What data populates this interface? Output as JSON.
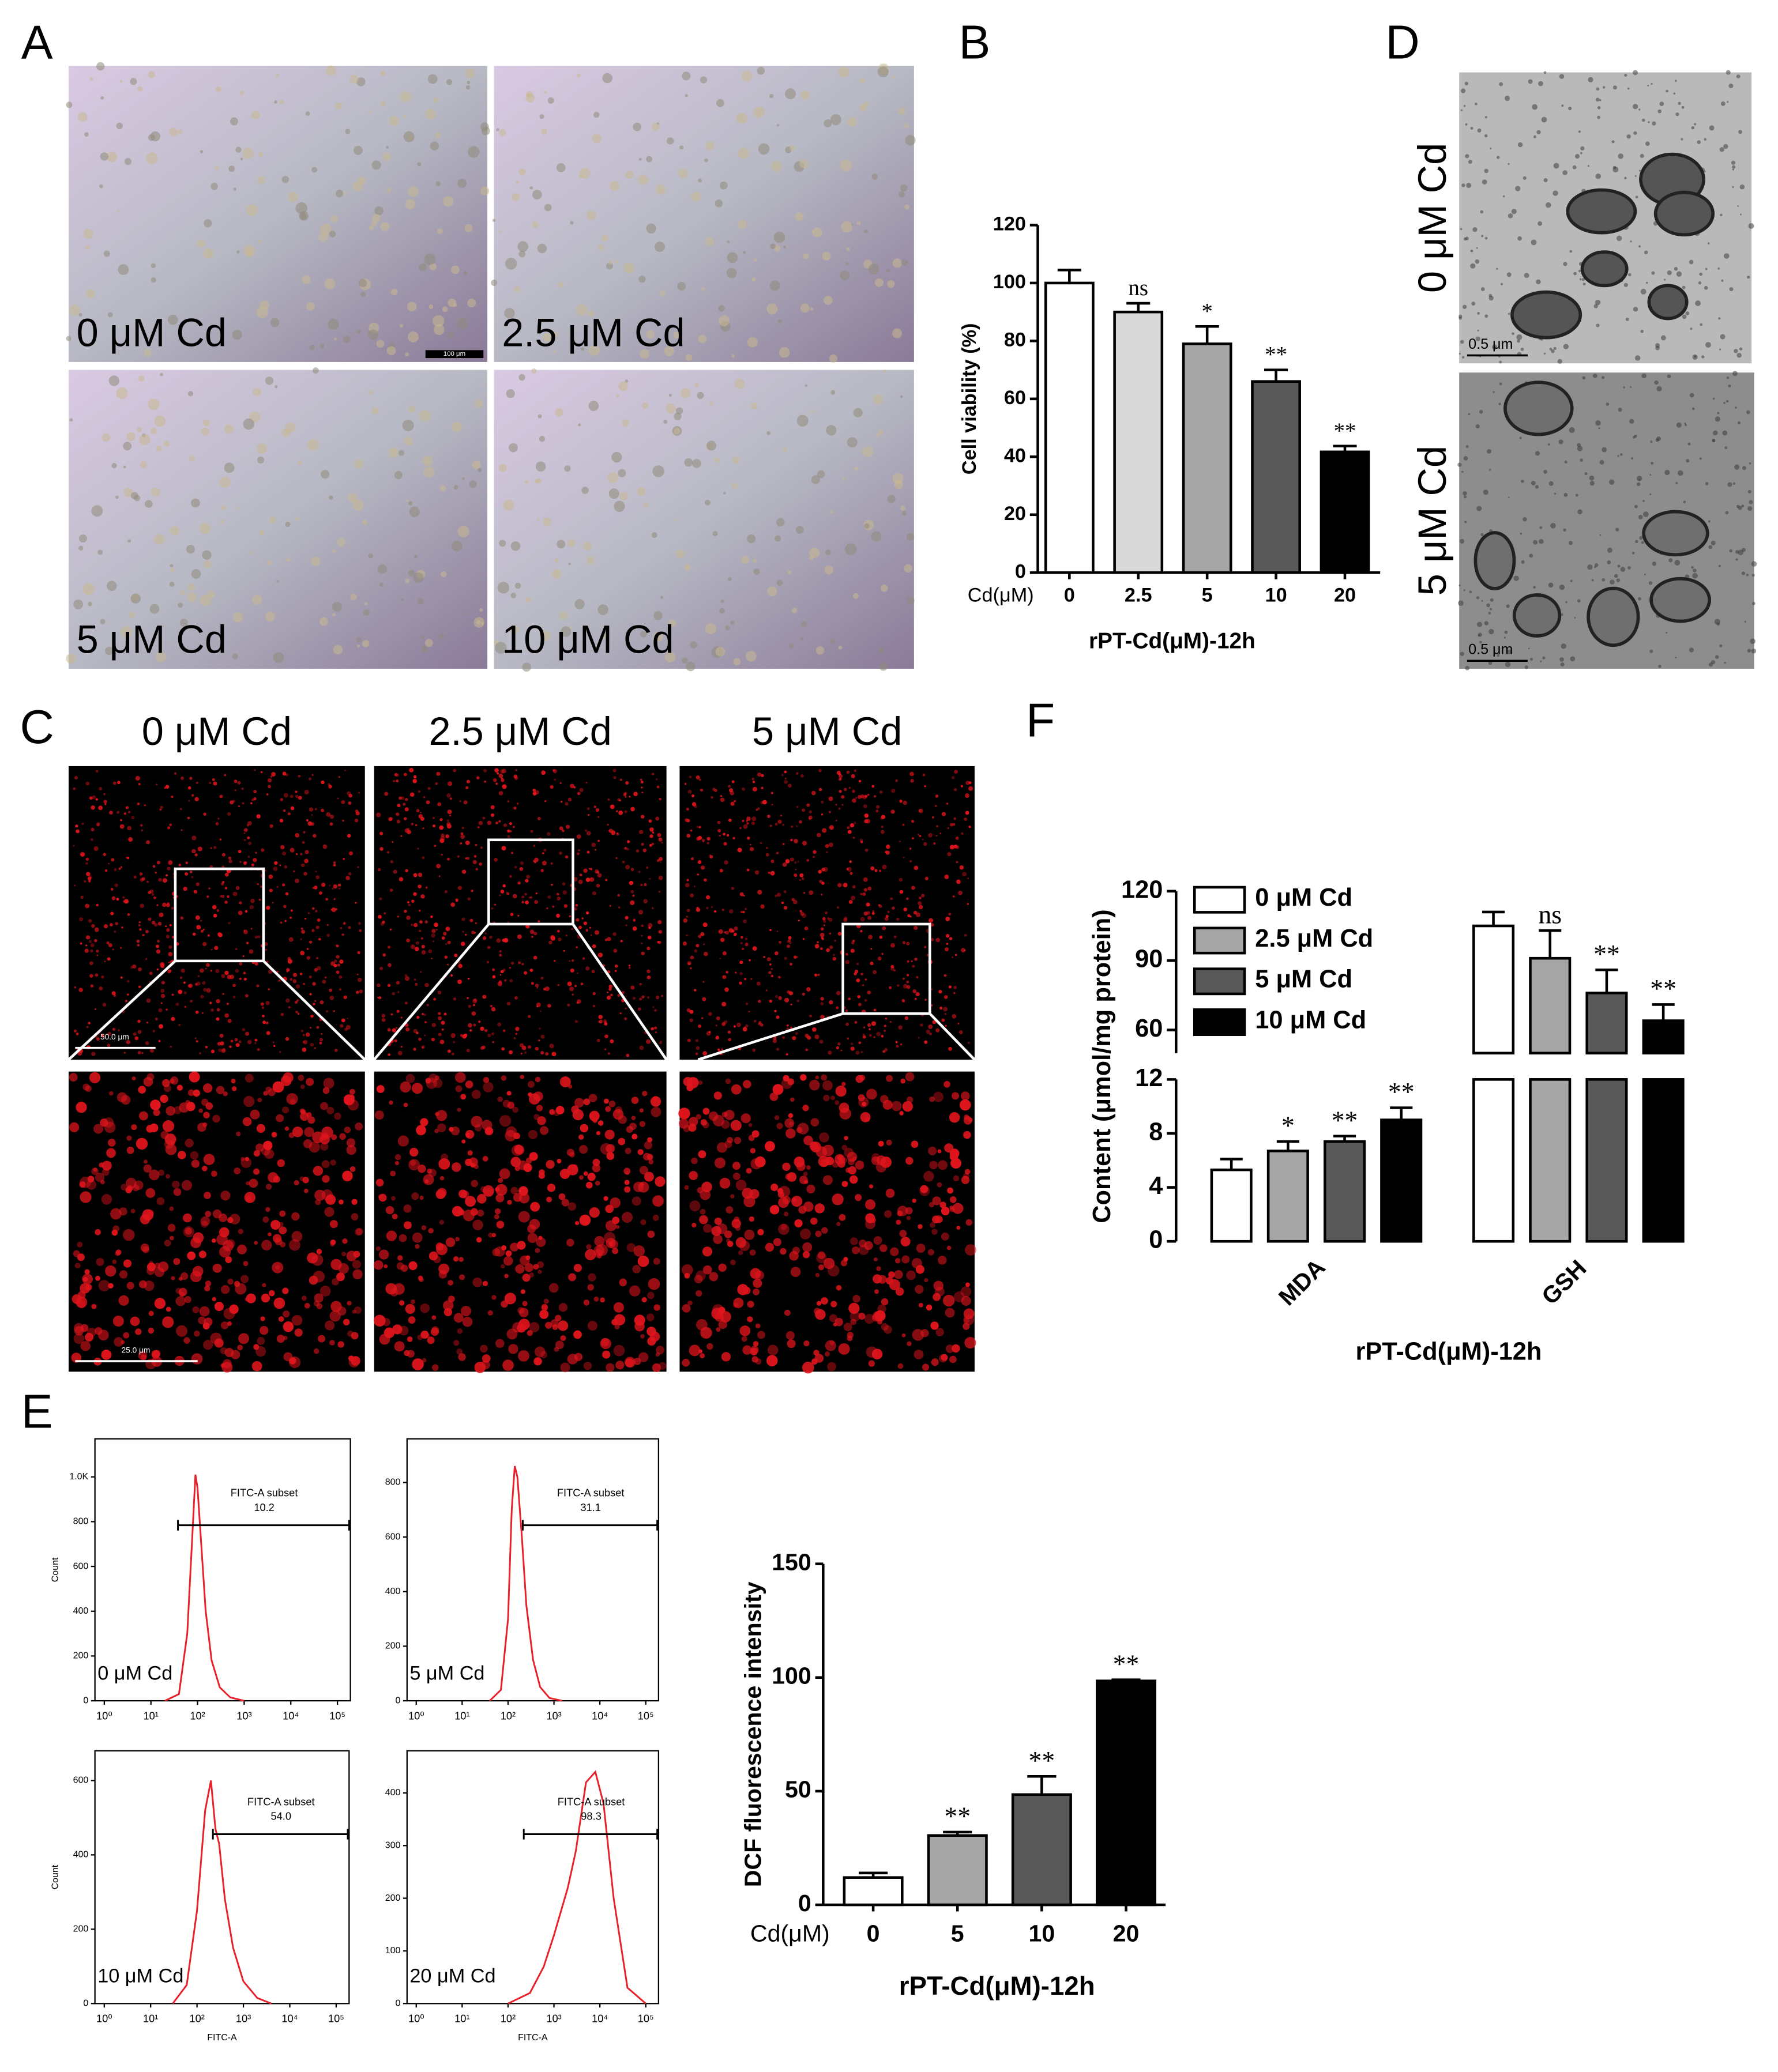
{
  "panel_labels": [
    "A",
    "B",
    "C",
    "D",
    "E",
    "F"
  ],
  "micrographs": {
    "A": {
      "labels": [
        "0 μM Cd",
        "2.5 μM Cd",
        "5 μM Cd",
        "10 μM Cd"
      ],
      "scale_bar": "100 μm"
    },
    "C": {
      "labels": [
        "0 μM Cd",
        "2.5 μM Cd",
        "5 μM Cd"
      ],
      "scale_bars": [
        "50.0 μm",
        "25.0 μm"
      ]
    },
    "D": {
      "labels": [
        "0 μM Cd",
        "5 μM Cd"
      ],
      "scale_bars": [
        "0.5 μm",
        "0.5 μm"
      ]
    }
  },
  "chart_data": [
    {
      "type": "bar",
      "categories": [
        "0",
        "2.5",
        "5",
        "10",
        "20"
      ],
      "x_axis_name": "Cd(μM)",
      "xlabel": "rPT-Cd(μM)-12h",
      "ylabel": "Cell viability (%)",
      "values": [
        100,
        90,
        79,
        66,
        41.7
      ],
      "errors": [
        4.5,
        3,
        6,
        4,
        2
      ],
      "annotations": [
        null,
        "ns",
        "*",
        "**",
        "**"
      ],
      "colors": [
        "#ffffff",
        "#d9d9d9",
        "#a6a6a6",
        "#595959",
        "#000000"
      ],
      "ylim": [
        0,
        120
      ],
      "yticks": [
        0,
        20,
        40,
        60,
        80,
        100,
        120
      ]
    },
    {
      "type": "grouped-bar",
      "categories": [
        "MDA",
        "GSH"
      ],
      "xlabel": "rPT-Cd(μM)-12h",
      "ylabel": "Content (μmol/mg protein)",
      "series": [
        {
          "name": "0 μM Cd",
          "color": "#ffffff",
          "values": [
            5.3,
            105
          ],
          "errors": [
            0.8,
            6
          ],
          "annotations": [
            null,
            null
          ]
        },
        {
          "name": "2.5 μM Cd",
          "color": "#a6a6a6",
          "values": [
            6.7,
            91
          ],
          "errors": [
            0.7,
            12
          ],
          "annotations": [
            "*",
            "ns"
          ]
        },
        {
          "name": "5 μM Cd",
          "color": "#595959",
          "values": [
            7.4,
            76
          ],
          "errors": [
            0.4,
            10
          ],
          "annotations": [
            "**",
            "**"
          ]
        },
        {
          "name": "10 μM Cd",
          "color": "#000000",
          "values": [
            9.0,
            64
          ],
          "errors": [
            0.9,
            7
          ],
          "annotations": [
            "**",
            "**"
          ]
        }
      ],
      "y_segments": [
        {
          "ylim": [
            0,
            12
          ],
          "yticks": [
            0,
            4,
            8,
            12
          ]
        },
        {
          "ylim": [
            50,
            120
          ],
          "yticks": [
            60,
            90,
            120
          ]
        }
      ]
    },
    {
      "type": "bar",
      "categories": [
        "0",
        "5",
        "10",
        "20"
      ],
      "x_axis_name": "Cd(μM)",
      "xlabel": "rPT-Cd(μM)-12h",
      "ylabel": "DCF fluorescence intensity",
      "values": [
        12,
        30.5,
        48.5,
        98.5
      ],
      "errors": [
        2,
        1.5,
        8,
        0.5
      ],
      "annotations": [
        null,
        "**",
        "**",
        "**"
      ],
      "colors": [
        "#ffffff",
        "#a6a6a6",
        "#595959",
        "#000000"
      ],
      "ylim": [
        0,
        150
      ],
      "yticks": [
        0,
        50,
        100,
        150
      ]
    },
    {
      "type": "line",
      "label": "0 μM Cd",
      "ylabel": "Count",
      "color": "#e8202a",
      "xscale": "log",
      "x": [
        20,
        40,
        60,
        80,
        90,
        100,
        120,
        150,
        200,
        300,
        500,
        1000
      ],
      "values": [
        0,
        30,
        300,
        800,
        1010,
        950,
        700,
        400,
        180,
        60,
        15,
        0
      ],
      "xlim": [
        0.63,
        190000
      ],
      "xticks": [
        {
          "value": 1,
          "label": "10⁰"
        },
        {
          "value": 10,
          "label": "10¹"
        },
        {
          "value": 100,
          "label": "10²"
        },
        {
          "value": 1000,
          "label": "10³"
        },
        {
          "value": 10000,
          "label": "10⁴"
        },
        {
          "value": 100000,
          "label": "10⁵"
        }
      ],
      "ylim": [
        0,
        1170
      ],
      "yticks": [
        0,
        200,
        400,
        600,
        800,
        {
          "value": 1000,
          "label": "1.0K"
        }
      ],
      "gate": {
        "name": "FITC-A subset",
        "x": 38,
        "value": 10.2
      }
    },
    {
      "type": "line",
      "label": "5 μM Cd",
      "color": "#e8202a",
      "xscale": "log",
      "x": [
        40,
        70,
        100,
        120,
        140,
        160,
        200,
        250,
        350,
        500,
        800,
        1500
      ],
      "values": [
        0,
        40,
        300,
        700,
        860,
        820,
        600,
        350,
        150,
        50,
        10,
        0
      ],
      "xlim": [
        0.63,
        190000
      ],
      "xticks": [
        {
          "value": 1,
          "label": "10⁰"
        },
        {
          "value": 10,
          "label": "10¹"
        },
        {
          "value": 100,
          "label": "10²"
        },
        {
          "value": 1000,
          "label": "10³"
        },
        {
          "value": 10000,
          "label": "10⁴"
        },
        {
          "value": 100000,
          "label": "10⁵"
        }
      ],
      "ylim": [
        0,
        960
      ],
      "yticks": [
        0,
        200,
        400,
        600,
        800
      ],
      "gate": {
        "name": "FITC-A subset",
        "x": 209,
        "value": 31.1
      }
    },
    {
      "type": "line",
      "label": "10 μM Cd",
      "ylabel": "Count",
      "xlabel": "FITC-A",
      "color": "#e8202a",
      "xscale": "log",
      "x": [
        30,
        60,
        100,
        150,
        200,
        250,
        300,
        400,
        600,
        1000,
        2000,
        4000
      ],
      "values": [
        0,
        50,
        250,
        520,
        600,
        470,
        430,
        280,
        150,
        60,
        15,
        0
      ],
      "xlim": [
        0.63,
        190000
      ],
      "xticks": [
        {
          "value": 1,
          "label": "10⁰"
        },
        {
          "value": 10,
          "label": "10¹"
        },
        {
          "value": 100,
          "label": "10²"
        },
        {
          "value": 1000,
          "label": "10³"
        },
        {
          "value": 10000,
          "label": "10⁴"
        },
        {
          "value": 100000,
          "label": "10⁵"
        }
      ],
      "ylim": [
        0,
        680
      ],
      "yticks": [
        0,
        200,
        400,
        600
      ],
      "gate": {
        "name": "FITC-A subset",
        "x": 220,
        "value": 54,
        "value_label": "54.0"
      }
    },
    {
      "type": "line",
      "label": "20 μM Cd",
      "xlabel": "FITC-A",
      "color": "#e8202a",
      "xscale": "log",
      "x": [
        100,
        300,
        600,
        1000,
        2000,
        3000,
        5000,
        8000,
        12000,
        20000,
        40000,
        100000
      ],
      "values": [
        0,
        20,
        70,
        130,
        220,
        290,
        420,
        440,
        380,
        200,
        30,
        0
      ],
      "xlim": [
        0.63,
        190000
      ],
      "xticks": [
        {
          "value": 1,
          "label": "10⁰"
        },
        {
          "value": 10,
          "label": "10¹"
        },
        {
          "value": 100,
          "label": "10²"
        },
        {
          "value": 1000,
          "label": "10³"
        },
        {
          "value": 10000,
          "label": "10⁴"
        },
        {
          "value": 100000,
          "label": "10⁵"
        }
      ],
      "ylim": [
        0,
        480
      ],
      "yticks": [
        0,
        100,
        200,
        300,
        400
      ],
      "gate": {
        "name": "FITC-A subset",
        "x": 220,
        "value": 98.3
      }
    }
  ]
}
